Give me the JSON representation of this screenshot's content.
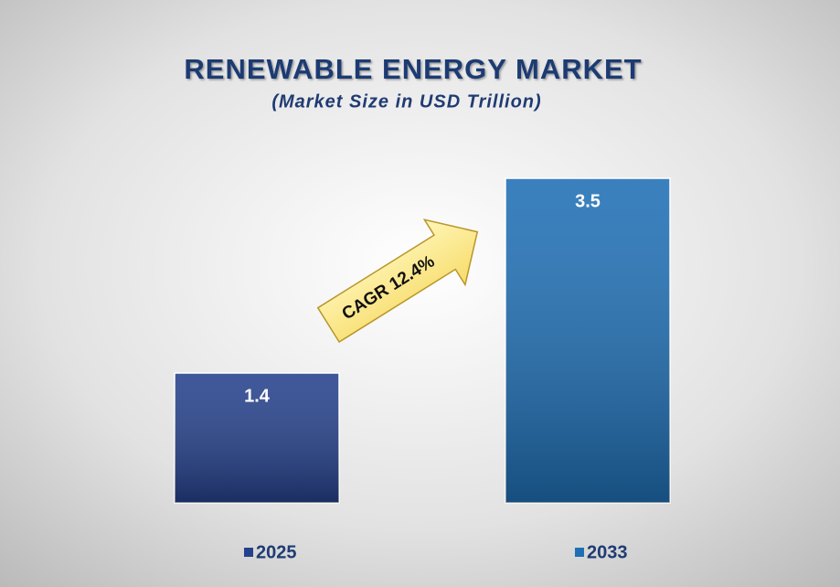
{
  "chart_data": {
    "type": "bar",
    "title": "RENEWABLE ENERGY MARKET",
    "subtitle": "(Market Size in USD Trillion)",
    "categories": [
      "2025",
      "2033"
    ],
    "values": [
      1.4,
      3.5
    ],
    "colors": [
      "#25418c",
      "#1f6fb5"
    ],
    "annotation": "CAGR 12.4%"
  }
}
